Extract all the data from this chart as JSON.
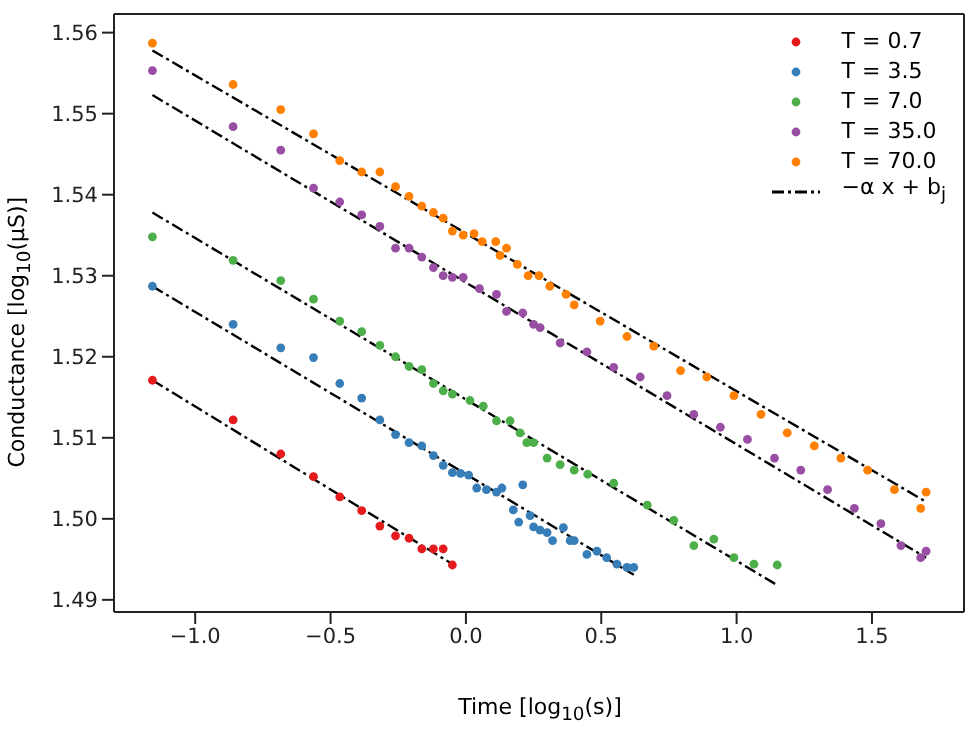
{
  "chart_data": {
    "type": "scatter",
    "xlabel": "Time [log$_{10}$(s)]",
    "ylabel": "Conductance [log$_{10}$(μS)]",
    "xlim": [
      -1.3,
      1.84
    ],
    "ylim": [
      1.4885,
      1.5623
    ],
    "xticks": [
      {
        "value": -1,
        "label": "−1.0"
      },
      {
        "value": -0.5,
        "label": "−0.5"
      },
      {
        "value": 0,
        "label": "0.0"
      },
      {
        "value": 0.5,
        "label": "0.5"
      },
      {
        "value": 1,
        "label": "1.0"
      },
      {
        "value": 1.5,
        "label": "1.5"
      }
    ],
    "yticks": [
      1.49,
      {
        "value": 1.5,
        "label": "1.50"
      },
      1.51,
      1.52,
      1.53,
      1.54,
      1.55,
      1.56
    ],
    "grid": false,
    "legend": "top right",
    "marker": "circle",
    "series": [
      {
        "name": "T = 0.7",
        "color": "#e41a1c",
        "x": [
          -1.158,
          -0.86,
          -0.684,
          -0.563,
          -0.466,
          -0.385,
          -0.318,
          -0.26,
          -0.21,
          -0.163,
          -0.12,
          -0.084,
          -0.05
        ],
        "values": [
          1.5171,
          1.5122,
          1.508,
          1.5052,
          1.5027,
          1.501,
          1.4991,
          1.4979,
          1.4976,
          1.4963,
          1.4963,
          1.4963,
          1.4943
        ]
      },
      {
        "name": "T = 3.5",
        "color": "#377eb8",
        "x": [
          -1.158,
          -0.86,
          -0.684,
          -0.563,
          -0.466,
          -0.385,
          -0.318,
          -0.26,
          -0.21,
          -0.163,
          -0.12,
          -0.084,
          -0.05,
          -0.02,
          0.01,
          0.04,
          0.076,
          0.113,
          0.133,
          0.175,
          0.195,
          0.21,
          0.237,
          0.25,
          0.274,
          0.3,
          0.32,
          0.36,
          0.385,
          0.4,
          0.447,
          0.484,
          0.52,
          0.558,
          0.595,
          0.62
        ],
        "values": [
          1.5287,
          1.524,
          1.5211,
          1.5199,
          1.5167,
          1.5149,
          1.5122,
          1.5104,
          1.5094,
          1.509,
          1.5078,
          1.5066,
          1.5057,
          1.5056,
          1.5054,
          1.5038,
          1.5036,
          1.5033,
          1.5038,
          1.5011,
          1.4996,
          1.5042,
          1.5004,
          1.499,
          1.4986,
          1.4983,
          1.4973,
          1.4989,
          1.4973,
          1.4973,
          1.4956,
          1.496,
          1.4952,
          1.4944,
          1.494,
          1.494
        ]
      },
      {
        "name": "T = 7.0",
        "color": "#4daf4a",
        "x": [
          -1.158,
          -0.86,
          -0.684,
          -0.563,
          -0.466,
          -0.385,
          -0.318,
          -0.26,
          -0.21,
          -0.163,
          -0.12,
          -0.084,
          -0.05,
          0.015,
          0.064,
          0.113,
          0.163,
          0.2,
          0.225,
          0.25,
          0.3,
          0.348,
          0.4,
          0.45,
          0.546,
          0.67,
          0.768,
          0.842,
          0.916,
          0.99,
          1.064,
          1.15
        ],
        "values": [
          1.5348,
          1.5319,
          1.5294,
          1.5271,
          1.5244,
          1.5231,
          1.5214,
          1.52,
          1.5188,
          1.5184,
          1.5167,
          1.5158,
          1.5154,
          1.5146,
          1.5139,
          1.5121,
          1.5121,
          1.5106,
          1.5094,
          1.5094,
          1.5075,
          1.5067,
          1.506,
          1.5055,
          1.5044,
          1.5017,
          1.4998,
          1.4967,
          1.4975,
          1.4952,
          1.4944,
          1.4943
        ]
      },
      {
        "name": "T = 35.0",
        "color": "#984ea3",
        "x": [
          -1.158,
          -0.86,
          -0.684,
          -0.563,
          -0.466,
          -0.385,
          -0.318,
          -0.26,
          -0.21,
          -0.163,
          -0.12,
          -0.084,
          -0.05,
          -0.01,
          0.05,
          0.113,
          0.15,
          0.21,
          0.25,
          0.274,
          0.348,
          0.447,
          0.546,
          0.644,
          0.743,
          0.842,
          0.94,
          1.04,
          1.14,
          1.237,
          1.336,
          1.435,
          1.533,
          1.607,
          1.68,
          1.7
        ],
        "values": [
          1.5553,
          1.5484,
          1.5455,
          1.5408,
          1.5391,
          1.5375,
          1.5361,
          1.5334,
          1.5334,
          1.5323,
          1.531,
          1.53,
          1.5298,
          1.5298,
          1.5284,
          1.5277,
          1.5256,
          1.5254,
          1.524,
          1.5236,
          1.5217,
          1.5206,
          1.5187,
          1.5175,
          1.5152,
          1.5129,
          1.5113,
          1.5098,
          1.5075,
          1.506,
          1.5036,
          1.5013,
          1.4994,
          1.4967,
          1.4952,
          1.496
        ]
      },
      {
        "name": "T = 70.0",
        "color": "#ff7f00",
        "x": [
          -1.158,
          -0.86,
          -0.684,
          -0.563,
          -0.466,
          -0.385,
          -0.318,
          -0.26,
          -0.21,
          -0.163,
          -0.12,
          -0.084,
          -0.05,
          -0.01,
          0.03,
          0.06,
          0.11,
          0.126,
          0.15,
          0.19,
          0.23,
          0.27,
          0.31,
          0.37,
          0.4,
          0.496,
          0.595,
          0.694,
          0.793,
          0.89,
          0.99,
          1.09,
          1.187,
          1.287,
          1.385,
          1.484,
          1.583,
          1.68,
          1.7
        ],
        "values": [
          1.5587,
          1.5536,
          1.5505,
          1.5475,
          1.5442,
          1.5428,
          1.5428,
          1.541,
          1.5398,
          1.5386,
          1.5378,
          1.5371,
          1.5355,
          1.535,
          1.5352,
          1.5342,
          1.5342,
          1.5325,
          1.5334,
          1.5314,
          1.53,
          1.53,
          1.5287,
          1.5277,
          1.5264,
          1.5244,
          1.5225,
          1.5213,
          1.5183,
          1.5175,
          1.5152,
          1.5129,
          1.5106,
          1.509,
          1.5075,
          1.506,
          1.5036,
          1.5013,
          1.5033
        ]
      },
      {
        "name": "−α x + b$_{j}$",
        "type": "line",
        "color": "#000000",
        "line_style": "dashed",
        "marker": "none",
        "x": [
          -1.158,
          -0.04
        ],
        "values": [
          1.5171,
          1.4942
        ]
      },
      {
        "type": "line",
        "color": "#000000",
        "line_style": "dashed",
        "marker": "none",
        "x": [
          -1.158,
          0.62
        ],
        "values": [
          1.5287,
          1.4931
        ]
      },
      {
        "type": "line",
        "color": "#000000",
        "line_style": "dashed",
        "marker": "none",
        "x": [
          -1.158,
          1.146
        ],
        "values": [
          1.5378,
          1.4919
        ]
      },
      {
        "type": "line",
        "color": "#000000",
        "line_style": "dashed",
        "marker": "none",
        "x": [
          -1.158,
          1.7
        ],
        "values": [
          1.5523,
          1.4952
        ]
      },
      {
        "type": "line",
        "color": "#000000",
        "line_style": "dashed",
        "marker": "none",
        "x": [
          -1.158,
          1.7
        ],
        "values": [
          1.5578,
          1.5021
        ]
      }
    ]
  }
}
